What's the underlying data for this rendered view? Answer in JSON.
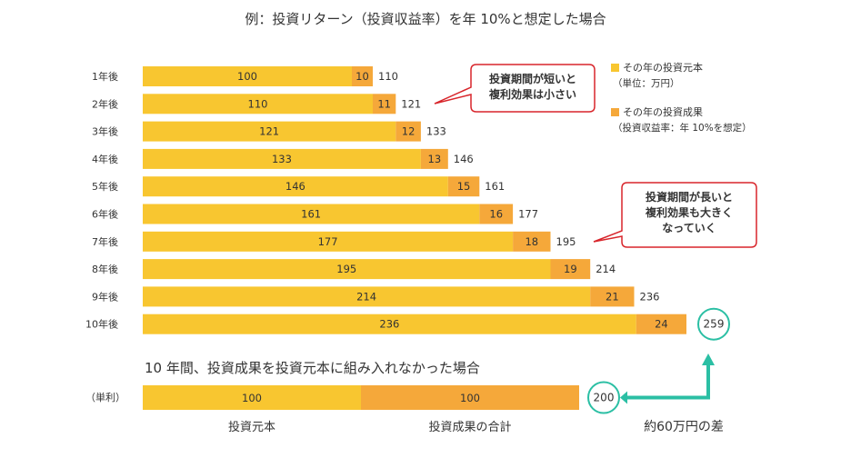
{
  "chart_data": {
    "type": "bar",
    "orientation": "horizontal",
    "stacked": true,
    "title": "例：投資リターン（投資収益率）を年 10%と想定した場合",
    "categories": [
      "1年後",
      "2年後",
      "3年後",
      "4年後",
      "5年後",
      "6年後",
      "7年後",
      "8年後",
      "9年後",
      "10年後"
    ],
    "series": [
      {
        "name": "その年の投資元本",
        "color": "#f8c630",
        "values": [
          100,
          110,
          121,
          133,
          146,
          161,
          177,
          195,
          214,
          236
        ]
      },
      {
        "name": "その年の投資成果",
        "color": "#f5a83a",
        "values": [
          10,
          11,
          12,
          13,
          15,
          16,
          18,
          19,
          21,
          24
        ]
      }
    ],
    "totals": [
      110,
      121,
      133,
      146,
      161,
      177,
      195,
      214,
      236,
      259
    ],
    "xlim": [
      0,
      260
    ],
    "legend": {
      "position": "right",
      "items": [
        {
          "label": "その年の投資元本",
          "note": "（単位：万円）",
          "color": "#f8c630"
        },
        {
          "label": "その年の投資成果",
          "note": "（投資収益率：年 10%を想定）",
          "color": "#f5a83a"
        }
      ]
    },
    "annotations": [
      {
        "lines": [
          "投資期間が短いと",
          "複利効果は小さい"
        ],
        "points_to": "2年後"
      },
      {
        "lines": [
          "投資期間が長いと",
          "複利効果も大きく",
          "なっていく"
        ],
        "points_to": "7年後"
      }
    ],
    "simple_interest": {
      "heading": "10 年間、投資成果を投資元本に組み入れなかった場合",
      "label": "（単利）",
      "values": [
        100,
        100
      ],
      "total": 200,
      "below_labels": [
        "投資元本",
        "投資成果の合計"
      ]
    },
    "difference": {
      "compound_total": 259,
      "simple_total": 200,
      "label": "約60万円の差"
    }
  }
}
